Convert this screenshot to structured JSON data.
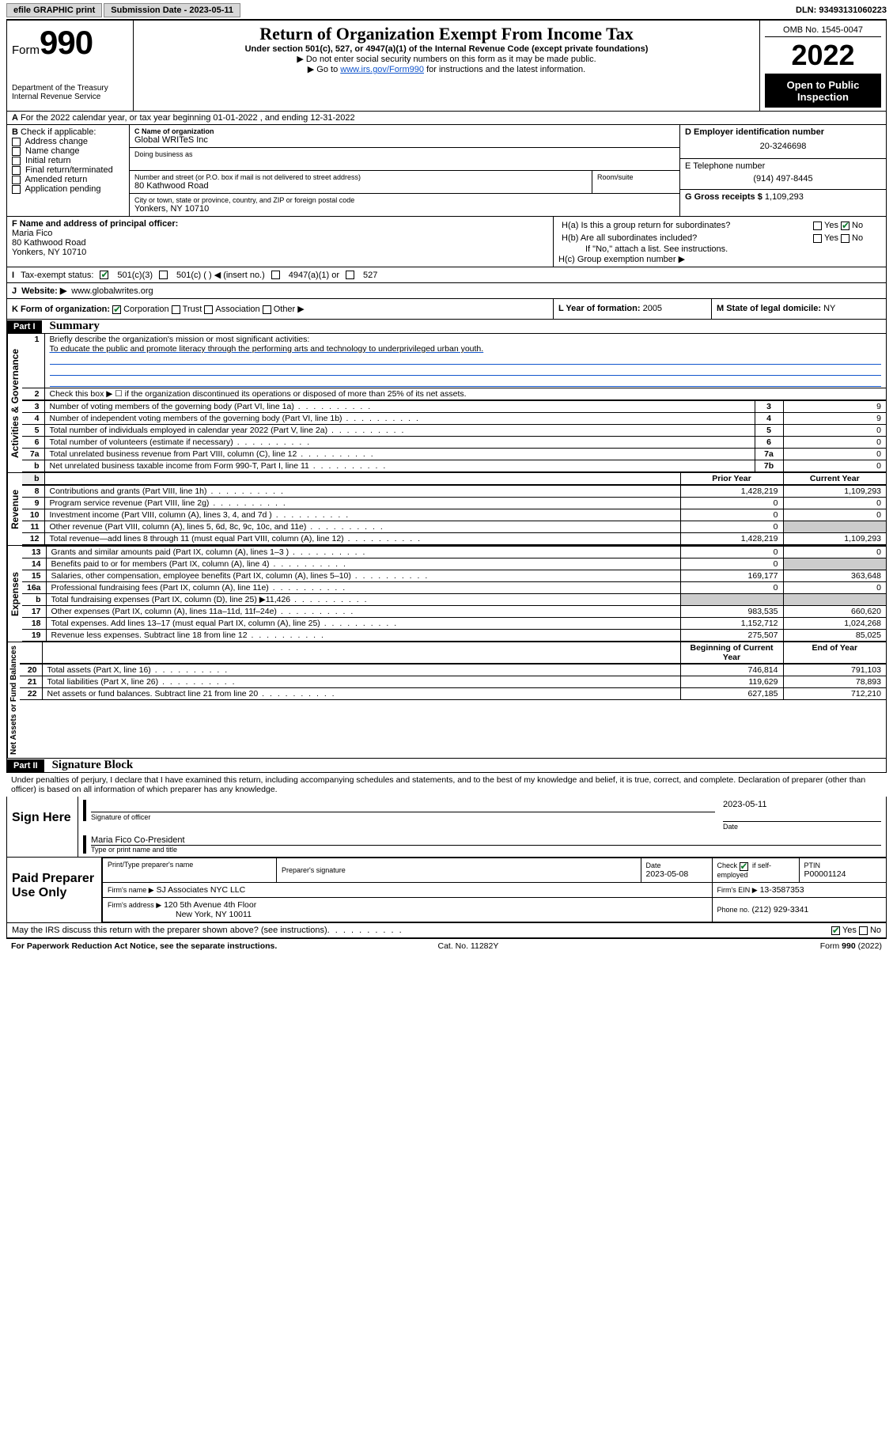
{
  "topbar": {
    "efile": "efile GRAPHIC print",
    "subdate_label": "Submission Date - ",
    "subdate": "2023-05-11",
    "dln_label": "DLN: ",
    "dln": "93493131060223"
  },
  "header": {
    "form_word": "Form",
    "form_no": "990",
    "dept": "Department of the Treasury",
    "irs": "Internal Revenue Service",
    "title": "Return of Organization Exempt From Income Tax",
    "sub1": "Under section 501(c), 527, or 4947(a)(1) of the Internal Revenue Code (except private foundations)",
    "sub2": "▶ Do not enter social security numbers on this form as it may be made public.",
    "sub3_a": "▶ Go to ",
    "sub3_link": "www.irs.gov/Form990",
    "sub3_b": " for instructions and the latest information.",
    "omb": "OMB No. 1545-0047",
    "year": "2022",
    "otp": "Open to Public Inspection"
  },
  "a": {
    "line": "For the 2022 calendar year, or tax year beginning 01-01-2022    , and ending 12-31-2022"
  },
  "b": {
    "label": "Check if applicable:",
    "items": [
      "Address change",
      "Name change",
      "Initial return",
      "Final return/terminated",
      "Amended return",
      "Application pending"
    ]
  },
  "c": {
    "name_label": "C Name of organization",
    "name": "Global WRITeS Inc",
    "dba_label": "Doing business as",
    "addr_label": "Number and street (or P.O. box if mail is not delivered to street address)",
    "room_label": "Room/suite",
    "addr": "80 Kathwood Road",
    "city_label": "City or town, state or province, country, and ZIP or foreign postal code",
    "city": "Yonkers, NY  10710"
  },
  "d": {
    "label": "D Employer identification number",
    "val": "20-3246698"
  },
  "e": {
    "label": "E Telephone number",
    "val": "(914) 497-8445"
  },
  "g": {
    "label": "G Gross receipts $",
    "val": "1,109,293"
  },
  "f": {
    "label": "F  Name and address of principal officer:",
    "name": "Maria Fico",
    "addr1": "80 Kathwood Road",
    "addr2": "Yonkers, NY  10710"
  },
  "h": {
    "a_label": "H(a)  Is this a group return for subordinates?",
    "b_label": "H(b)  Are all subordinates included?",
    "b_note": "If \"No,\" attach a list. See instructions.",
    "c_label": "H(c)  Group exemption number ▶",
    "yes": "Yes",
    "no": "No"
  },
  "i": {
    "label": "Tax-exempt status:",
    "o1": "501(c)(3)",
    "o2": "501(c) (  ) ◀ (insert no.)",
    "o3": "4947(a)(1) or",
    "o4": "527"
  },
  "j": {
    "label": "Website: ▶",
    "val": "www.globalwrites.org"
  },
  "k": {
    "label": "K Form of organization:",
    "o1": "Corporation",
    "o2": "Trust",
    "o3": "Association",
    "o4": "Other ▶"
  },
  "l": {
    "label": "L Year of formation:",
    "val": "2005"
  },
  "m": {
    "label": "M State of legal domicile:",
    "val": "NY"
  },
  "part1": {
    "hdr": "Part I",
    "title": "Summary",
    "q1": "Briefly describe the organization's mission or most significant activities:",
    "mission": "To educate the public and promote literacy through the performing arts and technology to underprivileged urban youth.",
    "q2": "Check this box ▶ ☐  if the organization discontinued its operations or disposed of more than 25% of its net assets.",
    "rows_ag": [
      {
        "no": "3",
        "desc": "Number of voting members of the governing body (Part VI, line 1a)",
        "box": "3",
        "val": "9"
      },
      {
        "no": "4",
        "desc": "Number of independent voting members of the governing body (Part VI, line 1b)",
        "box": "4",
        "val": "9"
      },
      {
        "no": "5",
        "desc": "Total number of individuals employed in calendar year 2022 (Part V, line 2a)",
        "box": "5",
        "val": "0"
      },
      {
        "no": "6",
        "desc": "Total number of volunteers (estimate if necessary)",
        "box": "6",
        "val": "0"
      },
      {
        "no": "7a",
        "desc": "Total unrelated business revenue from Part VIII, column (C), line 12",
        "box": "7a",
        "val": "0"
      },
      {
        "no": "b",
        "desc": "Net unrelated business taxable income from Form 990-T, Part I, line 11",
        "box": "7b",
        "val": "0"
      }
    ],
    "col_prior": "Prior Year",
    "col_curr": "Current Year",
    "rev": [
      {
        "no": "8",
        "desc": "Contributions and grants (Part VIII, line 1h)",
        "p": "1,428,219",
        "c": "1,109,293"
      },
      {
        "no": "9",
        "desc": "Program service revenue (Part VIII, line 2g)",
        "p": "0",
        "c": "0"
      },
      {
        "no": "10",
        "desc": "Investment income (Part VIII, column (A), lines 3, 4, and 7d )",
        "p": "0",
        "c": "0"
      },
      {
        "no": "11",
        "desc": "Other revenue (Part VIII, column (A), lines 5, 6d, 8c, 9c, 10c, and 11e)",
        "p": "0",
        "c": ""
      },
      {
        "no": "12",
        "desc": "Total revenue—add lines 8 through 11 (must equal Part VIII, column (A), line 12)",
        "p": "1,428,219",
        "c": "1,109,293"
      }
    ],
    "exp": [
      {
        "no": "13",
        "desc": "Grants and similar amounts paid (Part IX, column (A), lines 1–3 )",
        "p": "0",
        "c": "0"
      },
      {
        "no": "14",
        "desc": "Benefits paid to or for members (Part IX, column (A), line 4)",
        "p": "0",
        "c": ""
      },
      {
        "no": "15",
        "desc": "Salaries, other compensation, employee benefits (Part IX, column (A), lines 5–10)",
        "p": "169,177",
        "c": "363,648"
      },
      {
        "no": "16a",
        "desc": "Professional fundraising fees (Part IX, column (A), line 11e)",
        "p": "0",
        "c": "0"
      },
      {
        "no": "b",
        "desc": "Total fundraising expenses (Part IX, column (D), line 25) ▶11,426",
        "p": "",
        "c": ""
      },
      {
        "no": "17",
        "desc": "Other expenses (Part IX, column (A), lines 11a–11d, 11f–24e)",
        "p": "983,535",
        "c": "660,620"
      },
      {
        "no": "18",
        "desc": "Total expenses. Add lines 13–17 (must equal Part IX, column (A), line 25)",
        "p": "1,152,712",
        "c": "1,024,268"
      },
      {
        "no": "19",
        "desc": "Revenue less expenses. Subtract line 18 from line 12",
        "p": "275,507",
        "c": "85,025"
      }
    ],
    "col_beg": "Beginning of Current Year",
    "col_end": "End of Year",
    "na": [
      {
        "no": "20",
        "desc": "Total assets (Part X, line 16)",
        "p": "746,814",
        "c": "791,103"
      },
      {
        "no": "21",
        "desc": "Total liabilities (Part X, line 26)",
        "p": "119,629",
        "c": "78,893"
      },
      {
        "no": "22",
        "desc": "Net assets or fund balances. Subtract line 21 from line 20",
        "p": "627,185",
        "c": "712,210"
      }
    ],
    "vtab_ag": "Activities & Governance",
    "vtab_rev": "Revenue",
    "vtab_exp": "Expenses",
    "vtab_na": "Net Assets or Fund Balances"
  },
  "part2": {
    "hdr": "Part II",
    "title": "Signature Block",
    "decl": "Under penalties of perjury, I declare that I have examined this return, including accompanying schedules and statements, and to the best of my knowledge and belief, it is true, correct, and complete. Declaration of preparer (other than officer) is based on all information of which preparer has any knowledge.",
    "sign_here": "Sign Here",
    "sig_officer": "Signature of officer",
    "sig_date": "Date",
    "sig_date_val": "2023-05-11",
    "officer_name": "Maria Fico  Co-President",
    "type_name": "Type or print name and title",
    "paid": "Paid Preparer Use Only",
    "pt_name_label": "Print/Type preparer's name",
    "pt_sig_label": "Preparer's signature",
    "pt_date_label": "Date",
    "pt_date": "2023-05-08",
    "pt_check": "Check ☑ if self-employed",
    "ptin_label": "PTIN",
    "ptin": "P00001124",
    "firm_name_label": "Firm's name    ▶",
    "firm_name": "SJ Associates NYC LLC",
    "firm_ein_label": "Firm's EIN ▶",
    "firm_ein": "13-3587353",
    "firm_addr_label": "Firm's address ▶",
    "firm_addr1": "120 5th Avenue 4th Floor",
    "firm_addr2": "New York, NY  10011",
    "firm_phone_label": "Phone no.",
    "firm_phone": "(212) 929-3341",
    "discuss": "May the IRS discuss this return with the preparer shown above? (see instructions)",
    "yes": "Yes",
    "no": "No"
  },
  "footer": {
    "pra": "For Paperwork Reduction Act Notice, see the separate instructions.",
    "cat": "Cat. No. 11282Y",
    "form": "Form 990 (2022)"
  }
}
